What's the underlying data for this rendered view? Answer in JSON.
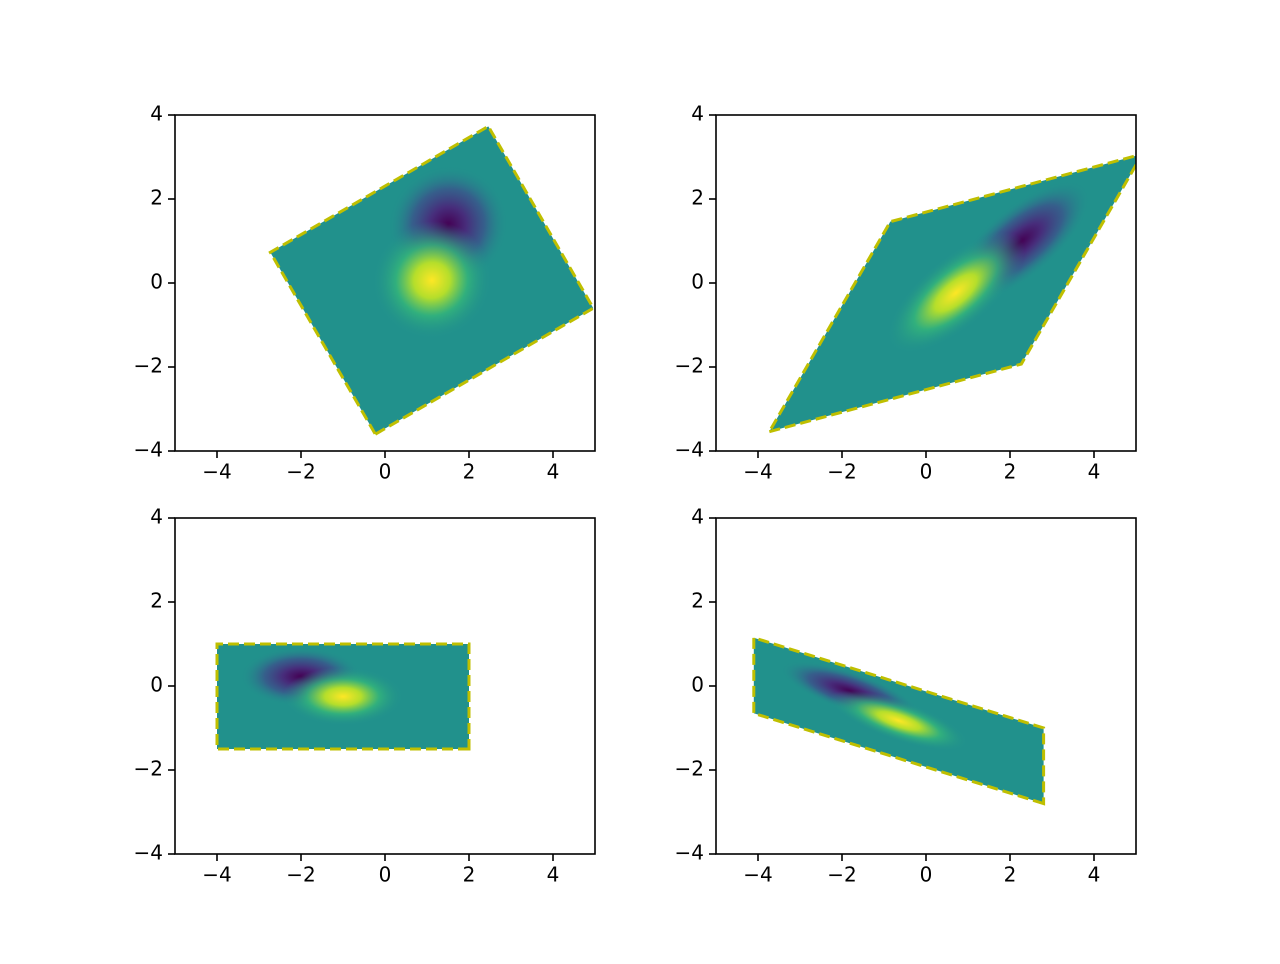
{
  "chart_data": [
    {
      "type": "image",
      "xlim": [
        -5,
        5
      ],
      "ylim": [
        -4,
        4
      ],
      "xticks": [
        {
          "value": -4,
          "label": "−4"
        },
        {
          "value": -2,
          "label": "−2"
        },
        0,
        2,
        4
      ],
      "yticks": [
        {
          "value": -4,
          "label": "−4"
        },
        {
          "value": -2,
          "label": "−2"
        },
        0,
        2,
        4
      ],
      "outline": {
        "x": [
          -0.23,
          4.96,
          2.46,
          -2.73
        ],
        "y": [
          -3.6,
          -0.6,
          3.73,
          0.73
        ]
      },
      "outline_color": "#bfbf00"
    },
    {
      "type": "image",
      "xlim": [
        -5,
        5
      ],
      "ylim": [
        -4,
        4
      ],
      "xticks": [
        {
          "value": -4,
          "label": "−4"
        },
        {
          "value": -2,
          "label": "−2"
        },
        0,
        2,
        4
      ],
      "yticks": [
        {
          "value": -4,
          "label": "−4"
        },
        {
          "value": -2,
          "label": "−2"
        },
        0,
        2,
        4
      ],
      "outline": {
        "x": [
          -3.73,
          2.27,
          5.15,
          -0.85
        ],
        "y": [
          -3.54,
          -1.93,
          3.07,
          1.46
        ]
      },
      "outline_color": "#bfbf00"
    },
    {
      "type": "image",
      "xlim": [
        -5,
        5
      ],
      "ylim": [
        -4,
        4
      ],
      "xticks": [
        {
          "value": -4,
          "label": "−4"
        },
        {
          "value": -2,
          "label": "−2"
        },
        0,
        2,
        4
      ],
      "yticks": [
        {
          "value": -4,
          "label": "−4"
        },
        {
          "value": -2,
          "label": "−2"
        },
        0,
        2,
        4
      ],
      "outline": {
        "x": [
          2,
          -4,
          -4,
          2
        ],
        "y": [
          -1.5,
          -1.5,
          1,
          1
        ]
      },
      "outline_color": "#bfbf00"
    },
    {
      "type": "image",
      "xlim": [
        -5,
        5
      ],
      "ylim": [
        -4,
        4
      ],
      "xticks": [
        {
          "value": -4,
          "label": "−4"
        },
        {
          "value": -2,
          "label": "−2"
        },
        0,
        2,
        4
      ],
      "yticks": [
        {
          "value": -4,
          "label": "−4"
        },
        {
          "value": -2,
          "label": "−2"
        },
        0,
        2,
        4
      ],
      "outline": {
        "x": [
          2.8,
          -4.1,
          -4.1,
          2.8
        ],
        "y": [
          -2.8,
          -0.65,
          1.15,
          -1.0
        ]
      },
      "outline_color": "#bfbf00"
    }
  ]
}
